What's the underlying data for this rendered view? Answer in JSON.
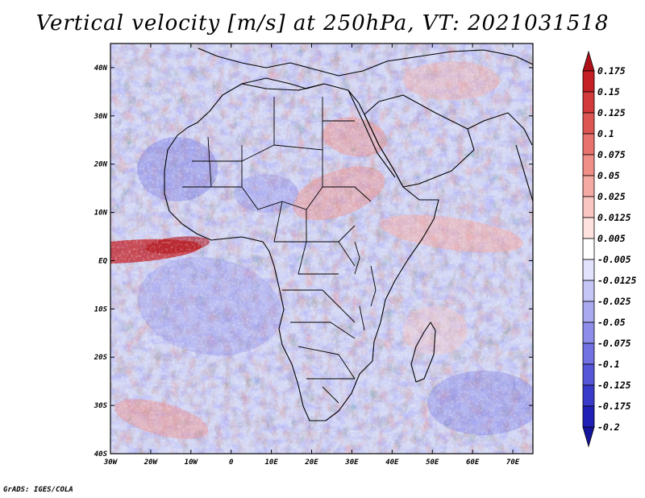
{
  "title": "Vertical velocity [m/s] at 250hPa, VT: 2021031518",
  "credit": "GrADS: IGES/COLA",
  "map": {
    "type": "filled-contour-map",
    "variable": "Vertical velocity",
    "units": "m/s",
    "level": "250hPa",
    "valid_time": "2021031518",
    "lon_range": [
      -30,
      75
    ],
    "lat_range": [
      -40,
      45
    ],
    "x_ticks": [
      "30W",
      "20W",
      "10W",
      "0",
      "10E",
      "20E",
      "30E",
      "40E",
      "50E",
      "60E",
      "70E"
    ],
    "x_tick_values": [
      -30,
      -20,
      -10,
      0,
      10,
      20,
      30,
      40,
      50,
      60,
      70
    ],
    "y_ticks": [
      "40N",
      "30N",
      "20N",
      "10N",
      "EQ",
      "10S",
      "20S",
      "30S",
      "40S"
    ],
    "y_tick_values": [
      40,
      30,
      20,
      10,
      0,
      -10,
      -20,
      -30,
      -40
    ]
  },
  "colorbar": {
    "levels": [
      "0.175",
      "0.15",
      "0.125",
      "0.1",
      "0.075",
      "0.05",
      "0.025",
      "0.0125",
      "0.005",
      "-0.005",
      "-0.0125",
      "-0.025",
      "-0.05",
      "-0.075",
      "-0.1",
      "-0.125",
      "-0.175",
      "-0.2"
    ],
    "colors": [
      "#b01018",
      "#c42026",
      "#d23a3c",
      "#de5654",
      "#e8726e",
      "#f08e88",
      "#f5aaa4",
      "#fac6c2",
      "#fde2e0",
      "#ffffff",
      "#e2e2fc",
      "#c6c6f6",
      "#aaaaf0",
      "#8e8eea",
      "#7272e2",
      "#5656d8",
      "#3a3aca",
      "#2020b6",
      "#14149c"
    ]
  },
  "colors": {
    "ocean_base": "#d4d8f4",
    "land_base": "#e2dcec",
    "warm": "#e05050",
    "cool": "#6060dc"
  }
}
